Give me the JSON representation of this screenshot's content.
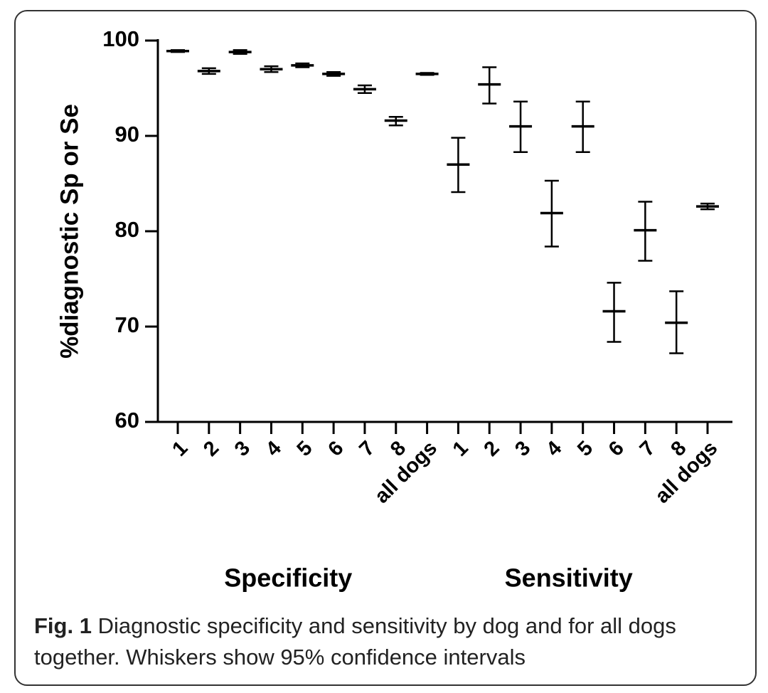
{
  "chart_data": {
    "type": "errorbar",
    "ylabel": "%diagnostic Sp or Se",
    "ylim": [
      60,
      100
    ],
    "yticks": [
      60,
      70,
      80,
      90,
      100
    ],
    "color": "#000000",
    "groups": [
      {
        "name": "Specificity",
        "categories": [
          "1",
          "2",
          "3",
          "4",
          "5",
          "6",
          "7",
          "8",
          "all dogs"
        ],
        "values": [
          98.9,
          96.8,
          98.8,
          97.0,
          97.4,
          96.5,
          94.9,
          91.6,
          96.5
        ],
        "lower": [
          98.8,
          96.5,
          98.6,
          96.7,
          97.2,
          96.3,
          94.5,
          91.1,
          96.4
        ],
        "upper": [
          99.0,
          97.1,
          99.0,
          97.3,
          97.6,
          96.7,
          95.3,
          92.0,
          96.6
        ]
      },
      {
        "name": "Sensitivity",
        "categories": [
          "1",
          "2",
          "3",
          "4",
          "5",
          "6",
          "7",
          "8",
          "all dogs"
        ],
        "values": [
          87.0,
          95.4,
          91.0,
          81.9,
          91.0,
          71.6,
          80.1,
          70.4,
          82.6
        ],
        "lower": [
          84.1,
          93.4,
          88.3,
          78.4,
          88.3,
          68.4,
          76.9,
          67.2,
          82.3
        ],
        "upper": [
          89.8,
          97.2,
          93.6,
          85.3,
          93.6,
          74.6,
          83.1,
          73.7,
          82.9
        ]
      }
    ]
  },
  "caption": {
    "label": "Fig. 1",
    "text": "Diagnostic specificity and sensitivity by dog and for all dogs together. Whiskers show 95% confidence intervals"
  }
}
